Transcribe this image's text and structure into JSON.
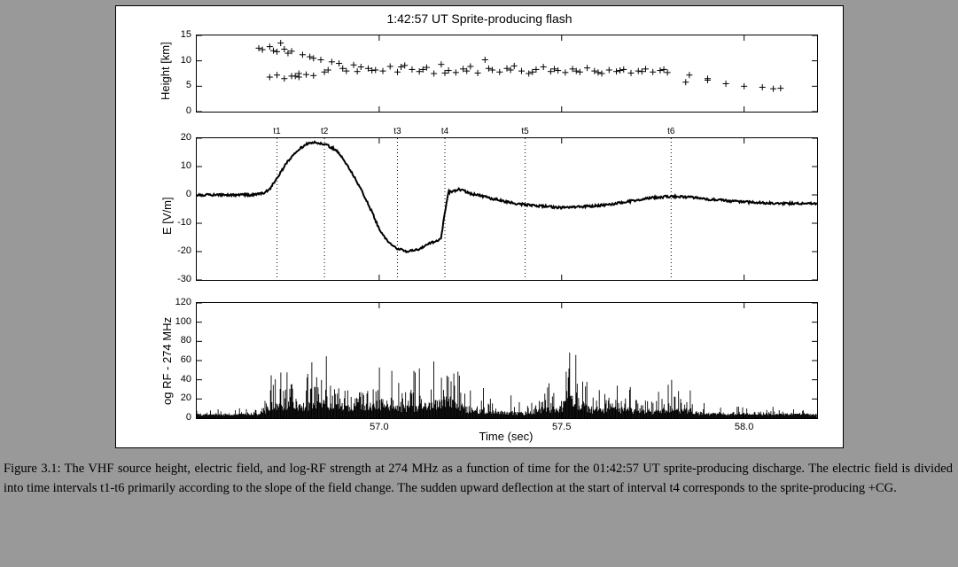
{
  "figure": {
    "title": "1:42:57 UT  Sprite-producing flash",
    "time_axis": {
      "label": "Time (sec)",
      "xlim": [
        56.5,
        58.2
      ],
      "ticks": [
        57.0,
        57.5,
        58.0
      ]
    },
    "panel1": {
      "ylabel": "Height [km]",
      "ylim": [
        0,
        15
      ],
      "yticks": [
        0,
        5,
        10,
        15
      ],
      "scatter_x": [
        56.67,
        56.68,
        56.7,
        56.71,
        56.72,
        56.73,
        56.74,
        56.75,
        56.76,
        56.77,
        56.78,
        56.79,
        56.81,
        56.82,
        56.84,
        56.85,
        56.87,
        56.89,
        56.91,
        56.93,
        56.95,
        56.97,
        56.99,
        57.01,
        57.03,
        57.05,
        57.07,
        57.09,
        57.11,
        57.13,
        57.15,
        57.17,
        57.19,
        57.21,
        57.23,
        57.25,
        57.27,
        57.29,
        57.31,
        57.33,
        57.35,
        57.37,
        57.39,
        57.41,
        57.43,
        57.45,
        57.47,
        57.49,
        57.51,
        57.53,
        57.55,
        57.57,
        57.59,
        57.61,
        57.63,
        57.65,
        57.67,
        57.69,
        57.71,
        57.73,
        57.75,
        57.77,
        57.79,
        57.85,
        57.9,
        57.95,
        58.0,
        58.05,
        58.08,
        58.1,
        56.7,
        56.72,
        56.74,
        56.76,
        56.78,
        56.8,
        56.82,
        56.86,
        56.9,
        56.94,
        56.98,
        57.06,
        57.12,
        57.18,
        57.24,
        57.3,
        57.36,
        57.42,
        57.48,
        57.54,
        57.6,
        57.66,
        57.72,
        57.78,
        57.84,
        57.9
      ],
      "scatter_y": [
        12.5,
        12.2,
        12.8,
        12.0,
        11.8,
        13.5,
        12.3,
        11.5,
        11.9,
        7.0,
        7.5,
        11.2,
        10.8,
        10.5,
        10.2,
        7.8,
        9.8,
        9.5,
        8.0,
        9.2,
        8.8,
        8.5,
        8.2,
        8.0,
        8.9,
        7.8,
        9.1,
        8.3,
        7.9,
        8.7,
        7.5,
        9.3,
        8.1,
        7.7,
        8.4,
        8.9,
        7.6,
        10.2,
        8.2,
        7.8,
        8.5,
        9.0,
        8.0,
        7.5,
        8.3,
        8.8,
        7.9,
        8.1,
        7.7,
        8.4,
        7.8,
        8.6,
        8.0,
        7.5,
        8.2,
        7.9,
        8.3,
        7.6,
        8.0,
        8.4,
        7.8,
        8.1,
        7.7,
        7.2,
        6.5,
        5.5,
        5.0,
        4.8,
        4.5,
        4.6,
        6.8,
        7.2,
        6.5,
        7.0,
        6.8,
        7.3,
        7.1,
        8.2,
        8.5,
        7.9,
        8.1,
        8.8,
        8.3,
        7.6,
        8.0,
        8.5,
        8.2,
        7.8,
        8.4,
        8.0,
        7.7,
        8.1,
        7.9,
        8.3,
        5.8,
        6.2
      ],
      "marker": "+",
      "marker_color": "#000000",
      "marker_size": 7
    },
    "panel2": {
      "ylabel": "E [V/m]",
      "ylim": [
        -30,
        20
      ],
      "yticks": [
        -30,
        -20,
        -10,
        0,
        10,
        20
      ],
      "interval_markers": {
        "labels": [
          "t1",
          "t2",
          "t3",
          "t4",
          "t5",
          "t6"
        ],
        "xpositions": [
          56.72,
          56.85,
          57.05,
          57.18,
          57.4,
          57.8
        ]
      },
      "line_x": [
        56.5,
        56.55,
        56.6,
        56.65,
        56.68,
        56.7,
        56.72,
        56.75,
        56.78,
        56.8,
        56.82,
        56.85,
        56.88,
        56.9,
        56.92,
        56.95,
        56.98,
        57.0,
        57.02,
        57.05,
        57.08,
        57.1,
        57.12,
        57.14,
        57.16,
        57.17,
        57.18,
        57.19,
        57.22,
        57.25,
        57.3,
        57.35,
        57.4,
        57.45,
        57.5,
        57.55,
        57.6,
        57.65,
        57.7,
        57.75,
        57.8,
        57.85,
        57.9,
        57.95,
        58.0,
        58.05,
        58.1,
        58.15,
        58.2
      ],
      "line_y": [
        0,
        0,
        0,
        0,
        0.5,
        2,
        6,
        12,
        16,
        18,
        18.5,
        18,
        16,
        13,
        9,
        2,
        -6,
        -12,
        -16,
        -19,
        -20,
        -19.5,
        -18.5,
        -17,
        -16,
        -15,
        -6,
        1,
        2,
        0.5,
        -1,
        -2.5,
        -3.5,
        -4,
        -4.5,
        -4.2,
        -3.8,
        -3,
        -2,
        -1,
        -0.5,
        -0.8,
        -1.5,
        -2,
        -2.5,
        -2.8,
        -3,
        -3,
        -3
      ],
      "line_color": "#000000",
      "line_width": 2,
      "noise_amplitude": 0.8
    },
    "panel3": {
      "ylabel": "og RF - 274 MHz",
      "ylim": [
        0,
        120
      ],
      "yticks": [
        0,
        20,
        40,
        60,
        80,
        100,
        120
      ],
      "bar_color": "#000000",
      "density": 900,
      "envelope_x": [
        56.5,
        56.6,
        56.65,
        56.68,
        56.7,
        56.75,
        56.8,
        56.85,
        56.9,
        56.95,
        57.0,
        57.05,
        57.1,
        57.15,
        57.18,
        57.2,
        57.25,
        57.3,
        57.35,
        57.4,
        57.45,
        57.5,
        57.52,
        57.55,
        57.6,
        57.65,
        57.7,
        57.75,
        57.8,
        57.85,
        57.9,
        57.95,
        58.0,
        58.05,
        58.1,
        58.15,
        58.2
      ],
      "envelope_y": [
        8,
        8,
        10,
        15,
        50,
        55,
        45,
        60,
        40,
        50,
        45,
        40,
        45,
        50,
        70,
        55,
        30,
        25,
        20,
        20,
        30,
        40,
        90,
        35,
        30,
        35,
        30,
        25,
        35,
        25,
        15,
        10,
        10,
        10,
        12,
        8,
        8
      ]
    },
    "background_color": "#ffffff",
    "axis_color": "#000000"
  },
  "caption": {
    "label": "Figure 3.1:",
    "text": "The VHF source height, electric field, and log-RF strength at 274 MHz as a function of time for the 01:42:57 UT sprite-producing discharge. The electric field is divided into time intervals t1-t6 primarily according to the slope of the field change. The sudden upward deflection at the start of interval t4 corresponds to the sprite-producing +CG."
  }
}
